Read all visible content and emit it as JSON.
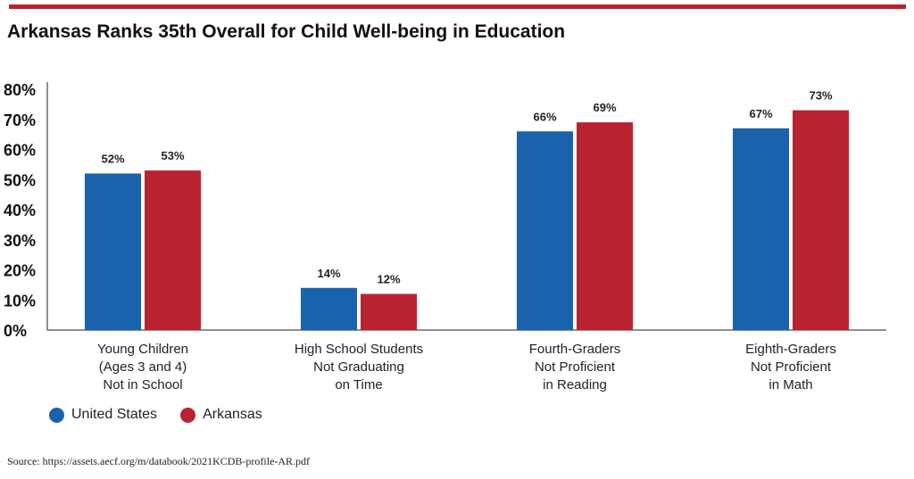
{
  "title": "Arkansas Ranks 35th Overall for Child Well-being in Education",
  "source": "Source: https://assets.aecf.org/m/databook/2021KCDB-profile-AR.pdf",
  "colors": {
    "accent": "#b8232f",
    "us": "#1b62ad",
    "ar": "#b8232f"
  },
  "chart_data": {
    "type": "bar",
    "categories": [
      [
        "Young Children",
        "(Ages 3 and 4)",
        "Not in School"
      ],
      [
        "High School Students",
        "Not Graduating",
        "on Time"
      ],
      [
        "Fourth-Graders",
        "Not Proficient",
        "in Reading"
      ],
      [
        "Eighth-Graders",
        "Not Proficient",
        "in Math"
      ]
    ],
    "series": [
      {
        "name": "United States",
        "values": [
          52,
          14,
          66,
          67
        ],
        "labels": [
          "52%",
          "14%",
          "66%",
          "67%"
        ],
        "color": "#1b62ad"
      },
      {
        "name": "Arkansas",
        "values": [
          53,
          12,
          69,
          73
        ],
        "labels": [
          "53%",
          "12%",
          "69%",
          "73%"
        ],
        "color": "#b8232f"
      }
    ],
    "ylim": [
      0,
      80
    ],
    "yticks": [
      0,
      10,
      20,
      30,
      40,
      50,
      60,
      70,
      80
    ],
    "ytick_labels": [
      "0%",
      "10%",
      "20%",
      "30%",
      "40%",
      "50%",
      "60%",
      "70%",
      "80%"
    ],
    "grid": false,
    "legend": "bottom-left"
  }
}
